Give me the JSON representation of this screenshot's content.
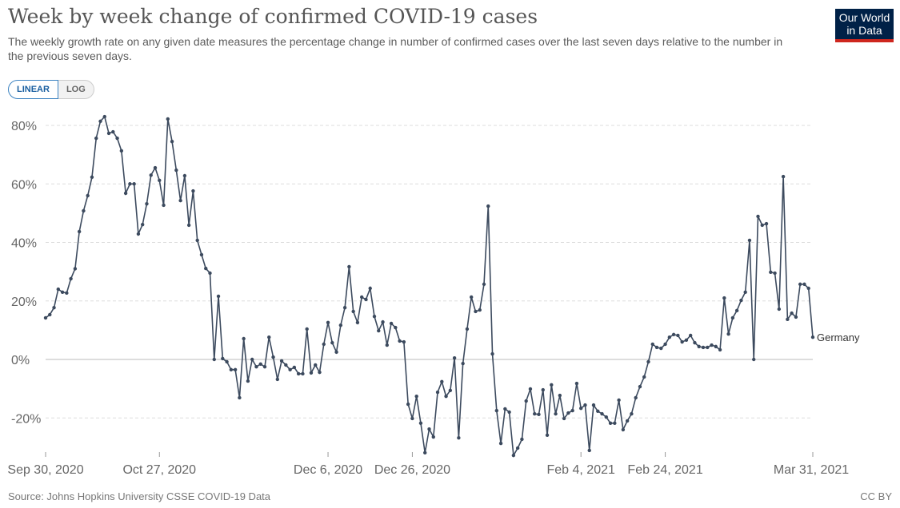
{
  "header": {
    "title": "Week by week change of confirmed COVID-19 cases",
    "subtitle": "The weekly growth rate on any given date measures the percentage change in number of confirmed cases over the last seven days relative to the number in the previous seven days.",
    "logo": "Our World in Data"
  },
  "toggle": {
    "linear": "LINEAR",
    "log": "LOG",
    "selected": "LINEAR"
  },
  "footer": {
    "source": "Source: Johns Hopkins University CSSE COVID-19 Data",
    "license": "CC BY"
  },
  "colors": {
    "line": "#3c4a5e",
    "grid": "#ddd",
    "zero": "#bbb",
    "logo_bg": "#002147",
    "logo_accent": "#ce261e"
  },
  "chart_data": {
    "type": "line",
    "title": "Week by week change of confirmed COVID-19 cases",
    "x_range": [
      "2020-09-30",
      "2021-03-31"
    ],
    "x_step": "daily",
    "xticks": [
      {
        "date": "2020-09-30",
        "label": "Sep 30, 2020"
      },
      {
        "date": "2020-10-27",
        "label": "Oct 27, 2020"
      },
      {
        "date": "2020-12-06",
        "label": "Dec 6, 2020"
      },
      {
        "date": "2020-12-26",
        "label": "Dec 26, 2020"
      },
      {
        "date": "2021-02-04",
        "label": "Feb 4, 2021"
      },
      {
        "date": "2021-02-24",
        "label": "Feb 24, 2021"
      },
      {
        "date": "2021-03-31",
        "label": "Mar 31, 2021"
      }
    ],
    "yticks": [
      {
        "value": -20,
        "label": "-20%"
      },
      {
        "value": 0,
        "label": "0%"
      },
      {
        "value": 20,
        "label": "20%"
      },
      {
        "value": 40,
        "label": "40%"
      },
      {
        "value": 60,
        "label": "60%"
      },
      {
        "value": 80,
        "label": "80%"
      }
    ],
    "grid": true,
    "ylabel": "",
    "xlabel": "",
    "series": [
      {
        "name": "Germany",
        "values": [
          14.2,
          15.3,
          17.7,
          24,
          23,
          22.7,
          27.6,
          31,
          43.7,
          50.8,
          56,
          62.3,
          75.6,
          81.4,
          83,
          77.3,
          77.8,
          75.6,
          71.3,
          56.8,
          60,
          60,
          42.9,
          46.1,
          53.2,
          63,
          65.5,
          61.2,
          52.7,
          82.2,
          74.5,
          64.7,
          54.3,
          62.8,
          45.9,
          57.6,
          40.7,
          35.8,
          31.1,
          29.5,
          0,
          21.6,
          0.3,
          -0.8,
          -3.5,
          -3.5,
          -13.1,
          7.1,
          -7.4,
          0,
          -2.5,
          -1.6,
          -2.5,
          7.6,
          0.8,
          -6.8,
          -0.5,
          -1.9,
          -3.5,
          -2.7,
          -4.9,
          -4.9,
          10.4,
          -4.6,
          -1.9,
          -4.4,
          5.2,
          12.6,
          5.7,
          2.5,
          11.7,
          17.7,
          31.7,
          16.4,
          12.6,
          21.3,
          20.5,
          24.3,
          14.7,
          9.8,
          12.8,
          4.9,
          12.3,
          10.9,
          6.3,
          6,
          -15.3,
          -20.2,
          -12.6,
          -21.8,
          -31.9,
          -23.8,
          -26.5,
          -11.2,
          -7.6,
          -12.6,
          -10.6,
          0.5,
          -26.8,
          -1.4,
          10.4,
          21.3,
          16.4,
          16.9,
          25.7,
          52.4,
          1.9,
          -17.5,
          -28.7,
          -16.9,
          -18,
          -32.8,
          -30.3,
          -27.3,
          -14.2,
          -10.1,
          -18.6,
          -18.8,
          -10.4,
          -25.9,
          -8.7,
          -18.6,
          -12.3,
          -20.2,
          -18.3,
          -17.5,
          -8.2,
          -16.7,
          -15.6,
          -31.1,
          -15.6,
          -17.7,
          -18.6,
          -19.7,
          -21.8,
          -21.8,
          -13.9,
          -24,
          -21,
          -18.6,
          -13.1,
          -9.3,
          -6,
          -0.8,
          5.2,
          4.1,
          3.8,
          5.2,
          7.6,
          8.5,
          8.2,
          6,
          6.6,
          8.2,
          5.7,
          4.4,
          4.1,
          4.1,
          4.9,
          4.4,
          3.3,
          21,
          8.7,
          14.2,
          16.7,
          20.2,
          23,
          40.7,
          0,
          48.9,
          45.9,
          46.4,
          29.8,
          29.5,
          17.2,
          62.5,
          13.7,
          15.8,
          14.5,
          25.7,
          25.7,
          24.3,
          7.6
        ]
      }
    ]
  }
}
